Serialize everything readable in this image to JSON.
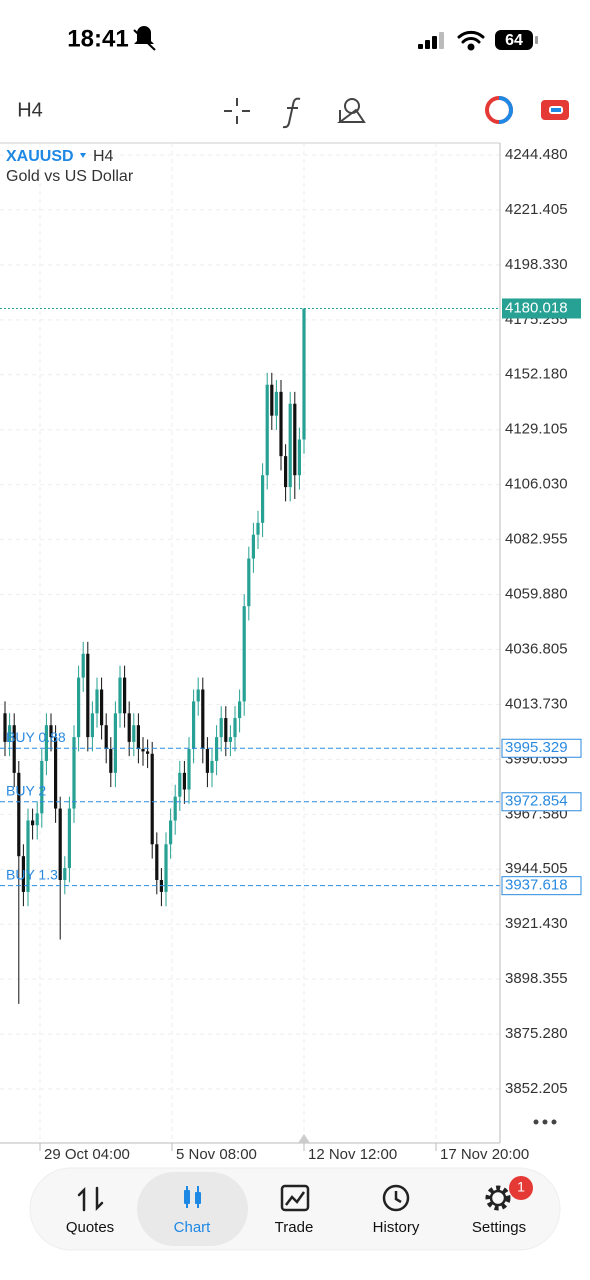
{
  "status_bar": {
    "time": "18:41",
    "battery": "64"
  },
  "toolbar": {
    "timeframe": "H4"
  },
  "chart_data": {
    "type": "candlestick",
    "symbol": "XAUUSD",
    "timeframe": "H4",
    "description": "Gold vs US Dollar",
    "ylim": [
      3829.55,
      4249.51
    ],
    "yticks": [
      {
        "value": 4244.48,
        "label": "4244.480"
      },
      4221.405,
      {
        "value": 4198.33,
        "label": "4198.330"
      },
      4175.255,
      {
        "value": 4152.18,
        "label": "4152.180"
      },
      4129.105,
      {
        "value": 4106.03,
        "label": "4106.030"
      },
      4082.955,
      {
        "value": 4059.88,
        "label": "4059.880"
      },
      4036.805,
      {
        "value": 4013.73,
        "label": "4013.730"
      },
      3990.655,
      {
        "value": 3967.58,
        "label": "3967.580"
      },
      3944.505,
      {
        "value": 3921.43,
        "label": "3921.430"
      },
      3898.355,
      {
        "value": 3875.28,
        "label": "3875.280"
      },
      3852.205
    ],
    "x_labels": [
      "29 Oct 04:00",
      "5 Nov 08:00",
      "12 Nov 12:00",
      "17 Nov 20:00"
    ],
    "grid": true,
    "up_color": "#26a193",
    "down_color": "#111111",
    "current_price": 4180.018,
    "current_color": "#26a193",
    "orders": [
      {
        "label": "BUY 0.88",
        "price": 3995.329
      },
      {
        "label": "BUY 2",
        "price": 3972.854
      },
      {
        "label": "BUY 1.3",
        "price": 3937.618
      }
    ],
    "order_color": "#2a8ae0",
    "candles": {
      "open": [
        4010,
        3998,
        4005,
        3985,
        3950,
        3935,
        3965,
        3963,
        3968,
        3990,
        4005,
        4000,
        3970,
        3940,
        3945,
        3970,
        4000,
        4025,
        4035,
        4000,
        4010,
        4020,
        4005,
        3995,
        3985,
        4010,
        4025,
        4010,
        3998,
        4005,
        3995,
        3994,
        3993,
        3955,
        3940,
        3935,
        3955,
        3965,
        3975,
        3985,
        3978,
        3995,
        4015,
        4020,
        3995,
        3985,
        3990,
        4000,
        4008,
        3998,
        4000,
        4008,
        4015,
        4055,
        4075,
        4085,
        4090,
        4110,
        4148,
        4135,
        4145,
        4118,
        4105,
        4140,
        4110,
        4125
      ],
      "high": [
        4015,
        4010,
        4010,
        3990,
        3955,
        3970,
        3970,
        3973,
        3995,
        4010,
        4010,
        4005,
        3975,
        3950,
        3975,
        4005,
        4030,
        4040,
        4040,
        4015,
        4025,
        4025,
        4010,
        4000,
        4015,
        4030,
        4030,
        4015,
        4010,
        4010,
        4000,
        3999,
        3998,
        3960,
        3945,
        3960,
        3970,
        3980,
        3990,
        3990,
        4000,
        4020,
        4025,
        4025,
        4000,
        3995,
        4005,
        4013,
        4013,
        4005,
        4013,
        4020,
        4060,
        4080,
        4090,
        4095,
        4115,
        4153,
        4153,
        4150,
        4150,
        4123,
        4145,
        4145,
        4130,
        4180.018
      ],
      "low": [
        3992,
        3992,
        3979,
        3888,
        3929,
        3929,
        3957,
        3957,
        3962,
        3984,
        3994,
        3964,
        3915,
        3934,
        3939,
        3964,
        3994,
        4019,
        3994,
        3994,
        4004,
        3999,
        3989,
        3979,
        3979,
        4004,
        4004,
        3992,
        3992,
        3989,
        3988,
        3987,
        3949,
        3934,
        3929,
        3929,
        3949,
        3959,
        3969,
        3972,
        3972,
        3989,
        4009,
        3989,
        3979,
        3979,
        3984,
        3994,
        3992,
        3992,
        3994,
        4002,
        4009,
        4049,
        4069,
        4079,
        4084,
        4104,
        4129,
        4129,
        4112,
        4099,
        4099,
        4100,
        4104,
        4119
      ],
      "close": [
        3998,
        4005,
        3985,
        3950,
        3935,
        3965,
        3963,
        3968,
        3990,
        4005,
        4000,
        3970,
        3940,
        3945,
        3970,
        4000,
        4025,
        4035,
        4000,
        4010,
        4020,
        4005,
        3995,
        3985,
        4010,
        4025,
        4010,
        3998,
        4005,
        3995,
        3994,
        3993,
        3955,
        3940,
        3935,
        3955,
        3965,
        3975,
        3985,
        3978,
        3995,
        4015,
        4020,
        3995,
        3985,
        3990,
        4000,
        4008,
        3998,
        4000,
        4008,
        4015,
        4055,
        4075,
        4085,
        4090,
        4110,
        4148,
        4135,
        4145,
        4118,
        4105,
        4140,
        4110,
        4125,
        4180.018
      ]
    }
  },
  "tab_bar": {
    "tabs": [
      "Quotes",
      "Chart",
      "Trade",
      "History",
      "Settings"
    ],
    "badge": "1"
  }
}
